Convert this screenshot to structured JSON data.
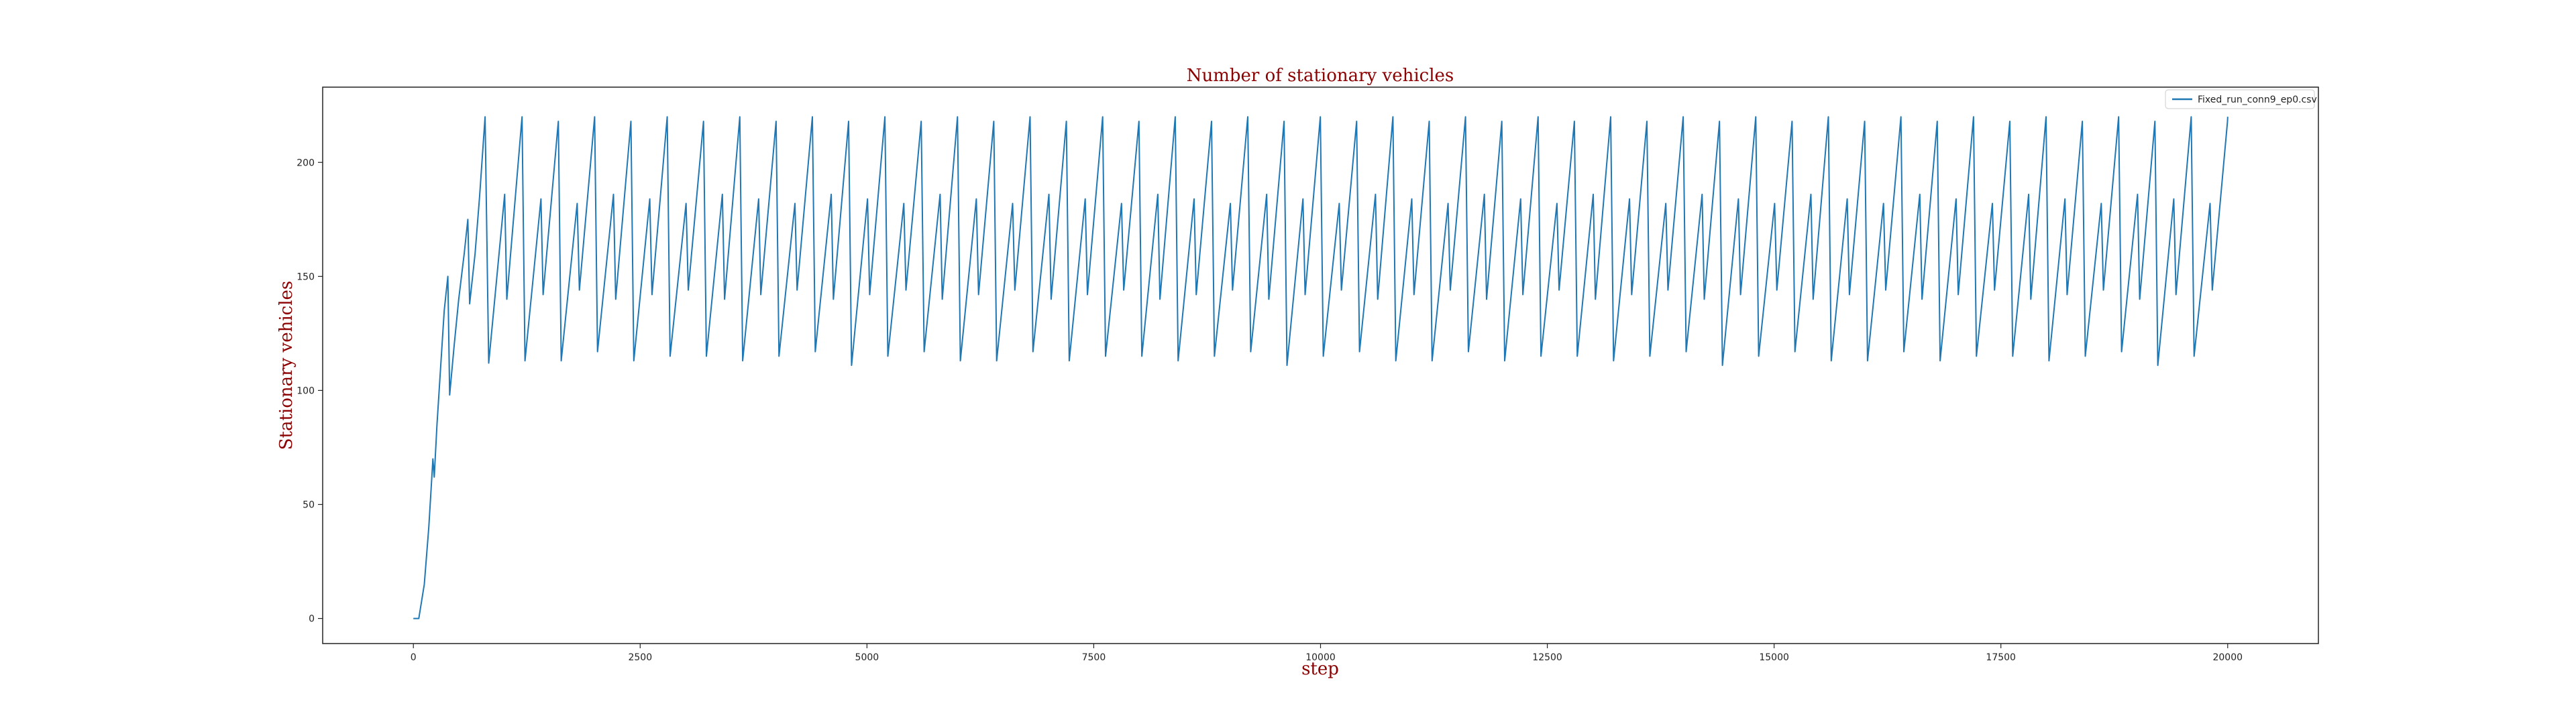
{
  "chart_data": {
    "type": "line",
    "title": "Number of stationary vehicles",
    "xlabel": "step",
    "ylabel": "Stationary vehicles",
    "xlim": [
      -1000,
      21000
    ],
    "ylim": [
      -11,
      233
    ],
    "xticks": [
      0,
      2500,
      5000,
      7500,
      10000,
      12500,
      15000,
      17500,
      20000
    ],
    "yticks": [
      0,
      50,
      100,
      150,
      200
    ],
    "grid": false,
    "legend_position": "top-right",
    "colors": {
      "series": "#1f77b4",
      "title": "#8b0000",
      "axis": "#222222"
    },
    "series": [
      {
        "name": "Fixed_run_conn9_ep0.csv",
        "points": [
          [
            0,
            0
          ],
          [
            60,
            0
          ],
          [
            120,
            15
          ],
          [
            170,
            40
          ],
          [
            200,
            60
          ],
          [
            215,
            70
          ],
          [
            230,
            62
          ],
          [
            260,
            85
          ],
          [
            300,
            110
          ],
          [
            340,
            135
          ],
          [
            380,
            150
          ],
          [
            400,
            98
          ],
          [
            450,
            120
          ],
          [
            500,
            140
          ],
          [
            560,
            160
          ],
          [
            600,
            175
          ],
          [
            620,
            138
          ],
          [
            680,
            160
          ],
          [
            730,
            185
          ],
          [
            790,
            220
          ],
          [
            830,
            112
          ]
        ],
        "cycle": {
          "start_step": 830,
          "end_step": 20000,
          "period": 400,
          "min": 113,
          "mid_peak": 186,
          "mid_trough": 140,
          "max": 220
        }
      }
    ]
  }
}
